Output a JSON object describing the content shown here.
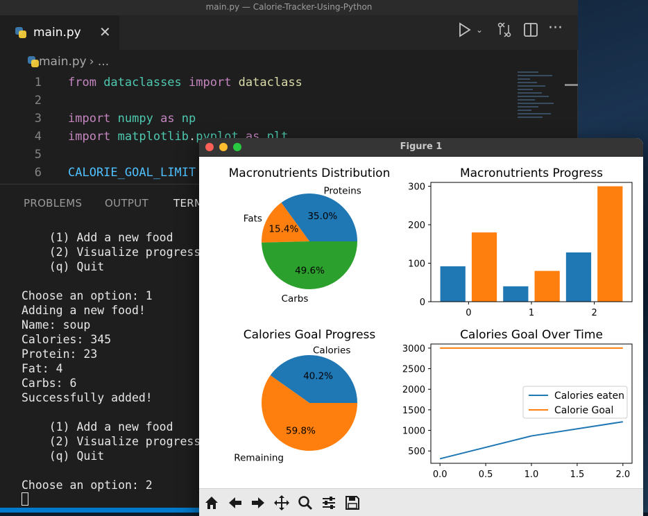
{
  "window_title": "main.py — Calorie-Tracker-Using-Python",
  "editor": {
    "tab_label": "main.py",
    "breadcrumb_file": "main.py",
    "breadcrumb_sep": "› ...",
    "lines": [
      {
        "n": "1",
        "tokens": [
          {
            "t": "from ",
            "c": "kw"
          },
          {
            "t": "dataclasses ",
            "c": "md"
          },
          {
            "t": "import ",
            "c": "kw"
          },
          {
            "t": "dataclass",
            "c": "fn"
          }
        ]
      },
      {
        "n": "2",
        "tokens": []
      },
      {
        "n": "3",
        "tokens": [
          {
            "t": "import ",
            "c": "kw"
          },
          {
            "t": "numpy ",
            "c": "md"
          },
          {
            "t": "as ",
            "c": "kw"
          },
          {
            "t": "np",
            "c": "md"
          }
        ]
      },
      {
        "n": "4",
        "tokens": [
          {
            "t": "import ",
            "c": "kw"
          },
          {
            "t": "matplotlib",
            "c": "md"
          },
          {
            "t": ".",
            "c": "tx"
          },
          {
            "t": "pyplot ",
            "c": "md"
          },
          {
            "t": "as ",
            "c": "kw"
          },
          {
            "t": "plt",
            "c": "md"
          }
        ]
      },
      {
        "n": "5",
        "tokens": []
      },
      {
        "n": "6",
        "tokens": [
          {
            "t": "CALORIE_GOAL_LIMIT",
            "c": "cn"
          }
        ]
      }
    ]
  },
  "panel": {
    "tabs": [
      "PROBLEMS",
      "OUTPUT",
      "TERM"
    ],
    "active_tab": "TERM"
  },
  "terminal_lines": [
    "    (1) Add a new food",
    "    (2) Visualize progress",
    "    (q) Quit",
    "",
    "Choose an option: 1",
    "Adding a new food!",
    "Name: soup",
    "Calories: 345",
    "Protein: 23",
    "Fat: 4",
    "Carbs: 6",
    "Successfully added!",
    "",
    "    (1) Add a new food",
    "    (2) Visualize progress",
    "    (q) Quit",
    "",
    "Choose an option: 2"
  ],
  "figure": {
    "title": "Figure 1",
    "toolbar_icons": [
      "home-icon",
      "back-arrow-icon",
      "forward-arrow-icon",
      "pan-icon",
      "zoom-icon",
      "configure-subplots-icon",
      "save-icon"
    ]
  },
  "colors": {
    "blue": "#1f77b4",
    "orange": "#ff7f0e",
    "green": "#2ca02c"
  },
  "chart_data": [
    {
      "type": "pie",
      "title": "Macronutrients Distribution",
      "labels": [
        "Proteins",
        "Fats",
        "Carbs"
      ],
      "values": [
        35.0,
        15.4,
        49.6
      ],
      "pct_labels": [
        "35.0%",
        "15.4%",
        "49.6%"
      ],
      "colors": [
        "#1f77b4",
        "#ff7f0e",
        "#2ca02c"
      ]
    },
    {
      "type": "bar",
      "title": "Macronutrients Progress",
      "x_ticks": [
        "0",
        "1",
        "2"
      ],
      "y_ticks": [
        "0",
        "100",
        "200",
        "300"
      ],
      "ylim": [
        0,
        310
      ],
      "bars": [
        {
          "x": -0.25,
          "value": 92,
          "color": "#1f77b4"
        },
        {
          "x": 0.25,
          "value": 180,
          "color": "#ff7f0e"
        },
        {
          "x": 0.75,
          "value": 40,
          "color": "#1f77b4"
        },
        {
          "x": 1.25,
          "value": 80,
          "color": "#ff7f0e"
        },
        {
          "x": 1.75,
          "value": 128,
          "color": "#1f77b4"
        },
        {
          "x": 2.25,
          "value": 300,
          "color": "#ff7f0e"
        }
      ],
      "xlim": [
        -0.6,
        2.6
      ]
    },
    {
      "type": "pie",
      "title": "Calories Goal Progress",
      "labels": [
        "Calories",
        "Remaining"
      ],
      "values": [
        40.2,
        59.8
      ],
      "pct_labels": [
        "40.2%",
        "59.8%"
      ],
      "colors": [
        "#1f77b4",
        "#ff7f0e"
      ]
    },
    {
      "type": "line",
      "title": "Calories Goal Over Time",
      "x_ticks": [
        "0.0",
        "0.5",
        "1.0",
        "1.5",
        "2.0"
      ],
      "y_ticks": [
        "500",
        "1000",
        "1500",
        "2000",
        "2500",
        "3000"
      ],
      "xlim": [
        -0.1,
        2.1
      ],
      "ylim": [
        200,
        3100
      ],
      "series": [
        {
          "name": "Calories eaten",
          "color": "#1f77b4",
          "x": [
            0,
            1,
            2
          ],
          "y": [
            310,
            865,
            1210
          ]
        },
        {
          "name": "Calorie Goal",
          "color": "#ff7f0e",
          "x": [
            0,
            1,
            2
          ],
          "y": [
            3000,
            3000,
            3000
          ]
        }
      ],
      "legend": "center-right"
    }
  ]
}
